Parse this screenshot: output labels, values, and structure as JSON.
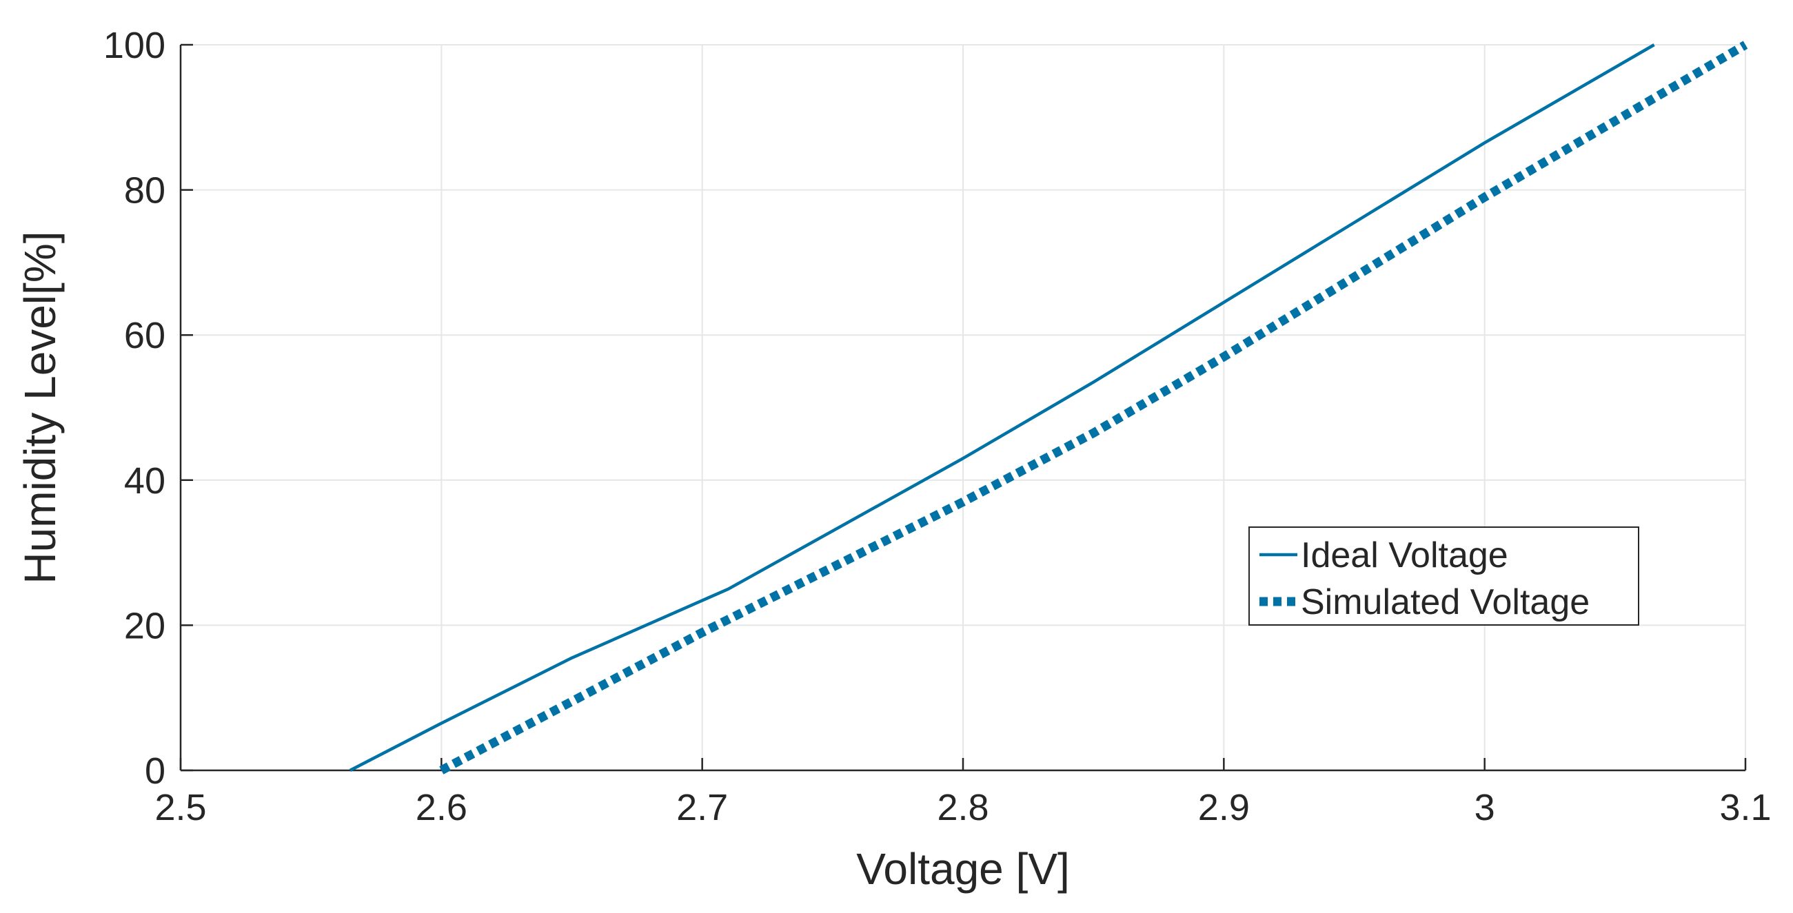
{
  "chart_data": {
    "type": "line",
    "title": "",
    "xlabel": "Voltage [V]",
    "ylabel": "Humidity Level[%]",
    "xlim": [
      2.5,
      3.1
    ],
    "ylim": [
      0,
      100
    ],
    "xticks": [
      2.5,
      2.6,
      2.7,
      2.8,
      2.9,
      3.0,
      3.1
    ],
    "xtick_labels": [
      "2.5",
      "2.6",
      "2.7",
      "2.8",
      "2.9",
      "3",
      "3.1"
    ],
    "yticks": [
      0,
      20,
      40,
      60,
      80,
      100
    ],
    "ytick_labels": [
      "0",
      "20",
      "40",
      "60",
      "80",
      "100"
    ],
    "grid": true,
    "legend_position": "center-right",
    "series": [
      {
        "name": "Ideal Voltage",
        "style": "solid",
        "color": "#0072A6",
        "x": [
          2.565,
          2.6,
          2.65,
          2.71,
          2.8,
          2.85,
          2.9,
          2.95,
          3.0,
          3.065
        ],
        "y": [
          0,
          6.5,
          15.5,
          25,
          43,
          53.5,
          64.5,
          75.5,
          86.5,
          100
        ]
      },
      {
        "name": "Simulated Voltage",
        "style": "dotted",
        "color": "#0072A6",
        "x": [
          2.6,
          2.65,
          2.7,
          2.75,
          2.8,
          2.85,
          2.9,
          2.95,
          3.0,
          3.05,
          3.1
        ],
        "y": [
          0,
          9.5,
          19,
          28,
          37,
          46.5,
          57,
          68,
          79,
          89.5,
          100
        ]
      }
    ]
  }
}
